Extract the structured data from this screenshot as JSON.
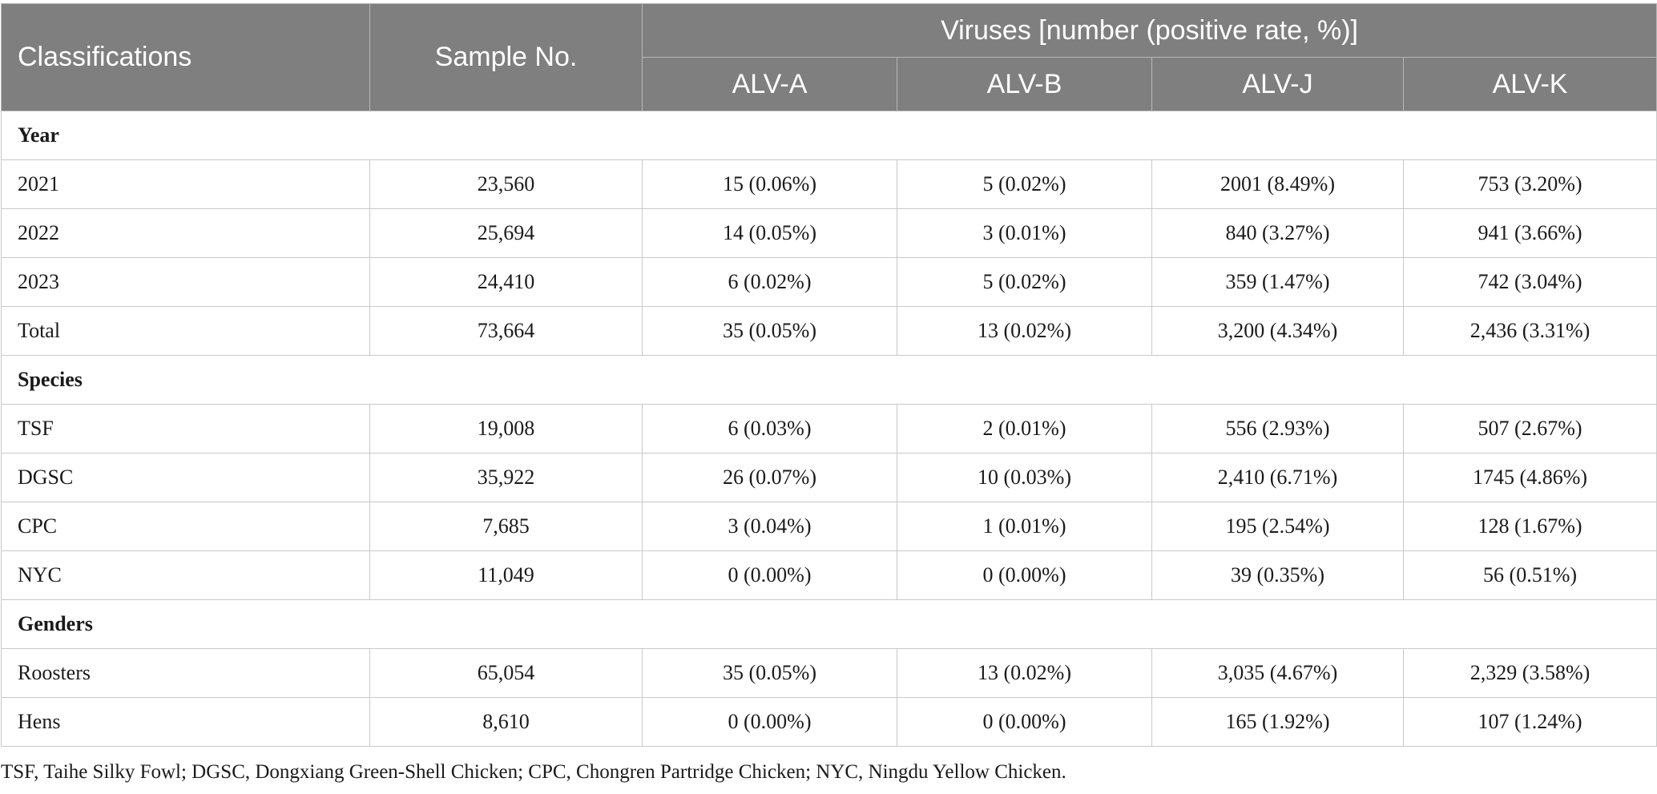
{
  "header": {
    "classifications": "Classifications",
    "sample_no": "Sample No.",
    "viruses_group": "Viruses [number (positive rate, %)]",
    "virus_cols": [
      "ALV-A",
      "ALV-B",
      "ALV-J",
      "ALV-K"
    ]
  },
  "sections": [
    {
      "title": "Year",
      "rows": [
        {
          "label": "2021",
          "sample": "23,560",
          "values": [
            "15 (0.06%)",
            "5 (0.02%)",
            "2001 (8.49%)",
            "753 (3.20%)"
          ]
        },
        {
          "label": "2022",
          "sample": "25,694",
          "values": [
            "14 (0.05%)",
            "3 (0.01%)",
            "840 (3.27%)",
            "941 (3.66%)"
          ]
        },
        {
          "label": "2023",
          "sample": "24,410",
          "values": [
            "6 (0.02%)",
            "5 (0.02%)",
            "359 (1.47%)",
            "742 (3.04%)"
          ]
        },
        {
          "label": "Total",
          "sample": "73,664",
          "values": [
            "35 (0.05%)",
            "13 (0.02%)",
            "3,200 (4.34%)",
            "2,436 (3.31%)"
          ]
        }
      ]
    },
    {
      "title": "Species",
      "rows": [
        {
          "label": "TSF",
          "sample": "19,008",
          "values": [
            "6 (0.03%)",
            "2 (0.01%)",
            "556 (2.93%)",
            "507 (2.67%)"
          ]
        },
        {
          "label": "DGSC",
          "sample": "35,922",
          "values": [
            "26 (0.07%)",
            "10 (0.03%)",
            "2,410 (6.71%)",
            "1745 (4.86%)"
          ]
        },
        {
          "label": "CPC",
          "sample": "7,685",
          "values": [
            "3 (0.04%)",
            "1 (0.01%)",
            "195 (2.54%)",
            "128 (1.67%)"
          ]
        },
        {
          "label": "NYC",
          "sample": "11,049",
          "values": [
            "0 (0.00%)",
            "0 (0.00%)",
            "39 (0.35%)",
            "56 (0.51%)"
          ]
        }
      ]
    },
    {
      "title": "Genders",
      "rows": [
        {
          "label": "Roosters",
          "sample": "65,054",
          "values": [
            "35 (0.05%)",
            "13 (0.02%)",
            "3,035 (4.67%)",
            "2,329 (3.58%)"
          ]
        },
        {
          "label": "Hens",
          "sample": "8,610",
          "values": [
            "0 (0.00%)",
            "0 (0.00%)",
            "165 (1.92%)",
            "107 (1.24%)"
          ]
        }
      ]
    }
  ],
  "footnote": "TSF, Taihe Silky Fowl; DGSC, Dongxiang Green-Shell Chicken; CPC, Chongren Partridge Chicken; NYC, Ningdu Yellow Chicken."
}
